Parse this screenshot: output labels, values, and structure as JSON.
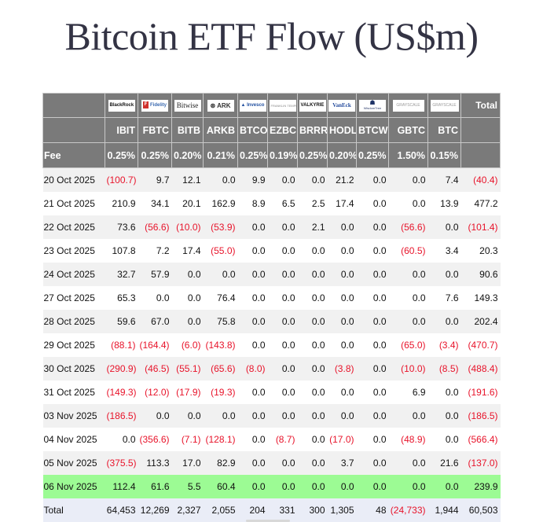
{
  "title": "Bitcoin ETF Flow (US$m)",
  "table": {
    "fee_label": "Fee",
    "total_header": "Total",
    "funds": [
      {
        "issuer": "BlackRock",
        "logo_text": "BlackRock",
        "ticker": "IBIT",
        "fee": "0.25%"
      },
      {
        "issuer": "Fidelity",
        "logo_text": "Fidelity",
        "ticker": "FBTC",
        "fee": "0.25%"
      },
      {
        "issuer": "Bitwise",
        "logo_text": "Bitwise",
        "ticker": "BITB",
        "fee": "0.20%"
      },
      {
        "issuer": "ARK Invest",
        "logo_text": "ARK",
        "ticker": "ARKB",
        "fee": "0.21%"
      },
      {
        "issuer": "Invesco",
        "logo_text": "Invesco",
        "ticker": "BTCO",
        "fee": "0.25%"
      },
      {
        "issuer": "Franklin Templeton",
        "logo_text": "FRANKLIN TEMPLETON",
        "ticker": "EZBC",
        "fee": "0.19%"
      },
      {
        "issuer": "Valkyrie",
        "logo_text": "VALKYRIE",
        "ticker": "BRRR",
        "fee": "0.25%"
      },
      {
        "issuer": "VanEck",
        "logo_text": "VanEck",
        "ticker": "HODL",
        "fee": "0.20%"
      },
      {
        "issuer": "WisdomTree",
        "logo_text": "WisdomTree",
        "ticker": "BTCW",
        "fee": "0.25%"
      },
      {
        "issuer": "Grayscale",
        "logo_text": "GRAYSCALE",
        "ticker": "GBTC",
        "fee": "1.50%"
      },
      {
        "issuer": "Grayscale",
        "logo_text": "GRAYSCALE",
        "ticker": "BTC",
        "fee": "0.15%"
      }
    ],
    "rows": [
      {
        "date": "20 Oct 2025",
        "values": [
          "(100.7)",
          "9.7",
          "12.1",
          "0.0",
          "9.9",
          "0.0",
          "0.0",
          "21.2",
          "0.0",
          "0.0",
          "7.4"
        ],
        "total": "(40.4)"
      },
      {
        "date": "21 Oct 2025",
        "values": [
          "210.9",
          "34.1",
          "20.1",
          "162.9",
          "8.9",
          "6.5",
          "2.5",
          "17.4",
          "0.0",
          "0.0",
          "13.9"
        ],
        "total": "477.2"
      },
      {
        "date": "22 Oct 2025",
        "values": [
          "73.6",
          "(56.6)",
          "(10.0)",
          "(53.9)",
          "0.0",
          "0.0",
          "2.1",
          "0.0",
          "0.0",
          "(56.6)",
          "0.0"
        ],
        "total": "(101.4)"
      },
      {
        "date": "23 Oct 2025",
        "values": [
          "107.8",
          "7.2",
          "17.4",
          "(55.0)",
          "0.0",
          "0.0",
          "0.0",
          "0.0",
          "0.0",
          "(60.5)",
          "3.4"
        ],
        "total": "20.3"
      },
      {
        "date": "24 Oct 2025",
        "values": [
          "32.7",
          "57.9",
          "0.0",
          "0.0",
          "0.0",
          "0.0",
          "0.0",
          "0.0",
          "0.0",
          "0.0",
          "0.0"
        ],
        "total": "90.6"
      },
      {
        "date": "27 Oct 2025",
        "values": [
          "65.3",
          "0.0",
          "0.0",
          "76.4",
          "0.0",
          "0.0",
          "0.0",
          "0.0",
          "0.0",
          "0.0",
          "7.6"
        ],
        "total": "149.3"
      },
      {
        "date": "28 Oct 2025",
        "values": [
          "59.6",
          "67.0",
          "0.0",
          "75.8",
          "0.0",
          "0.0",
          "0.0",
          "0.0",
          "0.0",
          "0.0",
          "0.0"
        ],
        "total": "202.4"
      },
      {
        "date": "29 Oct 2025",
        "values": [
          "(88.1)",
          "(164.4)",
          "(6.0)",
          "(143.8)",
          "0.0",
          "0.0",
          "0.0",
          "0.0",
          "0.0",
          "(65.0)",
          "(3.4)"
        ],
        "total": "(470.7)"
      },
      {
        "date": "30 Oct 2025",
        "values": [
          "(290.9)",
          "(46.5)",
          "(55.1)",
          "(65.6)",
          "(8.0)",
          "0.0",
          "0.0",
          "(3.8)",
          "0.0",
          "(10.0)",
          "(8.5)"
        ],
        "total": "(488.4)"
      },
      {
        "date": "31 Oct 2025",
        "values": [
          "(149.3)",
          "(12.0)",
          "(17.9)",
          "(19.3)",
          "0.0",
          "0.0",
          "0.0",
          "0.0",
          "0.0",
          "6.9",
          "0.0"
        ],
        "total": "(191.6)"
      },
      {
        "date": "03 Nov 2025",
        "values": [
          "(186.5)",
          "0.0",
          "0.0",
          "0.0",
          "0.0",
          "0.0",
          "0.0",
          "0.0",
          "0.0",
          "0.0",
          "0.0"
        ],
        "total": "(186.5)"
      },
      {
        "date": "04 Nov 2025",
        "values": [
          "0.0",
          "(356.6)",
          "(7.1)",
          "(128.1)",
          "0.0",
          "(8.7)",
          "0.0",
          "(17.0)",
          "0.0",
          "(48.9)",
          "0.0"
        ],
        "total": "(566.4)"
      },
      {
        "date": "05 Nov 2025",
        "values": [
          "(375.5)",
          "113.3",
          "17.0",
          "82.9",
          "0.0",
          "0.0",
          "0.0",
          "3.7",
          "0.0",
          "0.0",
          "21.6"
        ],
        "total": "(137.0)"
      },
      {
        "date": "06 Nov 2025",
        "values": [
          "112.4",
          "61.6",
          "5.5",
          "60.4",
          "0.0",
          "0.0",
          "0.0",
          "0.0",
          "0.0",
          "0.0",
          "0.0"
        ],
        "total": "239.9",
        "highlighted": true
      }
    ],
    "totals_row": {
      "label": "Total",
      "values": [
        "64,453",
        "12,269",
        "2,327",
        "2,055",
        "204",
        "331",
        "300",
        "1,305",
        "48",
        "(24,733)",
        "1,944"
      ],
      "total": "60,503"
    }
  },
  "colors": {
    "header_bg": "#7a7a7a",
    "negative": "#e8132a",
    "highlight_row": "#9cfb94",
    "total_row": "#eaedf7",
    "stripe": "#f1f1f1"
  }
}
